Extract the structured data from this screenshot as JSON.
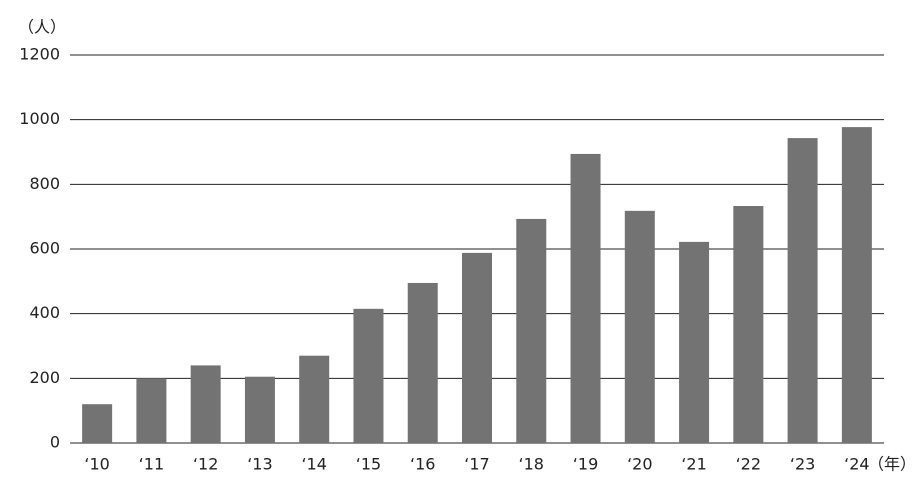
{
  "chart_data": {
    "type": "bar",
    "y_label": "（人）",
    "x_label": "（年）",
    "categories": [
      "‘10",
      "‘11",
      "‘12",
      "‘13",
      "‘14",
      "‘15",
      "‘16",
      "‘17",
      "‘18",
      "‘19",
      "‘20",
      "‘21",
      "‘22",
      "‘23",
      "‘24"
    ],
    "values": [
      120,
      200,
      240,
      205,
      270,
      415,
      495,
      588,
      693,
      894,
      718,
      622,
      733,
      943,
      977
    ],
    "color": "#737373",
    "ylim": [
      0,
      1200
    ],
    "yticks": [
      0,
      200,
      400,
      600,
      800,
      1000,
      1200
    ],
    "grid": true
  }
}
